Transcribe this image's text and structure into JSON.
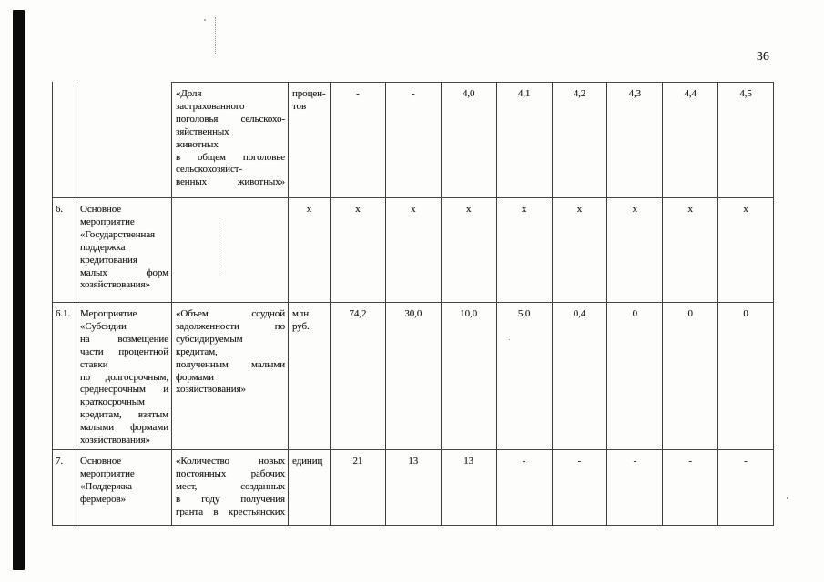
{
  "page": {
    "number": "36"
  },
  "table": {
    "rows": [
      {
        "num": "",
        "activity": "",
        "indicator": "«Доля\nзастрахованного\nпоголовья сельскохо-\nзяйственных\nживотных\nв общем поголовье\nсельскохозяйст-\nвенных животных»",
        "unit": "процен-\nтов",
        "values": [
          "-",
          "-",
          "4,0",
          "4,1",
          "4,2",
          "4,3",
          "4,4",
          "4,5"
        ]
      },
      {
        "num": "6.",
        "activity": "Основное\nмероприятие\n«Государственная\nподдержка\nкредитования\nмалых форм\nхозяйствования»",
        "indicator": "",
        "unit": "x",
        "values": [
          "x",
          "x",
          "x",
          "x",
          "x",
          "x",
          "x",
          "x"
        ]
      },
      {
        "num": "6.1.",
        "activity": "Мероприятие\n«Субсидии\nна возмещение\nчасти процентной\nставки\nпо долгосрочным,\nсреднесрочным и\nкраткосрочным\nкредитам, взятым\nмалыми формами\nхозяйствования»",
        "indicator": "«Объем ссудной\nзадолженности по\nсубсидируемым\nкредитам,\nполученным малыми\nформами\nхозяйствования»",
        "unit": "млн.\nруб.",
        "values": [
          "74,2",
          "30,0",
          "10,0",
          "5,0",
          "0,4",
          "0",
          "0",
          "0"
        ]
      },
      {
        "num": "7.",
        "activity": "Основное\nмероприятие\n«Поддержка\nфермеров»",
        "indicator": "«Количество новых\nпостоянных рабочих\nмест, созданных\nв году получения\nгранта в крестьянских",
        "unit": "единиц",
        "values": [
          "21",
          "13",
          "13",
          "-",
          "-",
          "-",
          "-",
          "-"
        ]
      }
    ]
  }
}
